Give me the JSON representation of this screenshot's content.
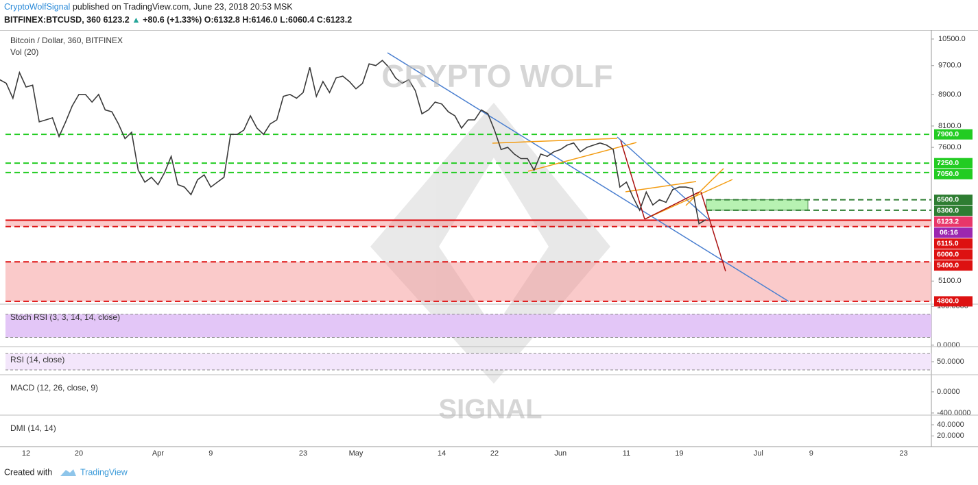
{
  "header": {
    "author": "CryptoWolfSignal",
    "published": "published on TradingView.com, June 23, 2018 20:53 MSK",
    "symbol": "BITFINEX:BTCUSD, 360",
    "last": "6123.2",
    "change": "+80.6 (+1.33%)",
    "open": "O:6132.8",
    "high": "H:6146.0",
    "low": "L:6060.4",
    "close": "C:6123.2"
  },
  "chart_data": {
    "type": "line",
    "title": "Bitcoin / Dollar, 360, BITFINEX",
    "subtitle": "Vol (20)",
    "color": "#3a3a3a",
    "log_scale": true,
    "categories": [
      null,
      null,
      null,
      null,
      "12",
      null,
      null,
      null,
      null,
      null,
      null,
      null,
      "20",
      null,
      null,
      null,
      null,
      null,
      null,
      null,
      null,
      null,
      null,
      null,
      "Apr",
      null,
      null,
      null,
      null,
      null,
      null,
      null,
      "9",
      null,
      null,
      null,
      null,
      null,
      null,
      null,
      null,
      null,
      null,
      null,
      null,
      null,
      "23",
      null,
      null,
      null,
      null,
      null,
      null,
      null,
      "May",
      null,
      null,
      null,
      null,
      null,
      null,
      null,
      null,
      null,
      null,
      null,
      null,
      "14",
      null,
      null,
      null,
      null,
      null,
      null,
      null,
      "22",
      null,
      null,
      null,
      null,
      null,
      null,
      null,
      null,
      null,
      "Jun",
      null,
      null,
      null,
      null,
      null,
      null,
      null,
      null,
      null,
      "11",
      null,
      null,
      null,
      null,
      null,
      null,
      null,
      "19",
      null,
      null,
      null,
      null,
      null,
      null,
      null,
      null,
      null,
      null,
      null,
      "Jul",
      null,
      null,
      null,
      null,
      null,
      null,
      null,
      "9",
      null,
      null,
      null,
      null,
      null,
      null,
      null,
      null,
      null,
      null,
      null,
      null,
      null,
      "23",
      null,
      null,
      null,
      null
    ],
    "values": [
      9300,
      9200,
      8800,
      9500,
      9100,
      9150,
      8200,
      8250,
      8300,
      7850,
      8200,
      8600,
      8900,
      8900,
      8700,
      8900,
      8500,
      8450,
      8150,
      7800,
      7950,
      7100,
      6850,
      6950,
      6800,
      7050,
      7400,
      6800,
      6750,
      6600,
      6900,
      7000,
      6750,
      6850,
      6950,
      7900,
      7900,
      8000,
      8350,
      8050,
      7900,
      8150,
      8250,
      8850,
      8900,
      8800,
      8950,
      9650,
      8850,
      9250,
      8950,
      9350,
      9400,
      9250,
      9050,
      9200,
      9750,
      9700,
      9850,
      9650,
      9350,
      9200,
      9300,
      9000,
      8400,
      8500,
      8700,
      8650,
      8450,
      8350,
      8050,
      8250,
      8250,
      8500,
      8400,
      8000,
      7550,
      7600,
      7450,
      7350,
      7350,
      7100,
      7450,
      7400,
      7500,
      7550,
      7650,
      7700,
      7500,
      7600,
      7650,
      7700,
      7650,
      7550,
      6750,
      6850,
      6550,
      6300,
      6650,
      6400,
      6500,
      6450,
      6700,
      6750,
      6750,
      6720,
      6050,
      6123.2,
      null,
      null,
      null,
      null,
      null,
      null,
      null,
      null,
      null,
      null,
      null,
      null,
      null,
      null,
      null,
      null,
      null,
      null,
      null,
      null,
      null,
      null,
      null,
      null,
      null,
      null,
      null,
      null,
      null,
      null,
      null,
      null,
      null,
      null
    ],
    "ylim": [
      4770,
      10760
    ],
    "yticks": [
      {
        "value": 10500,
        "label": "10500.0"
      },
      {
        "value": 9700,
        "label": "9700.0"
      },
      {
        "value": 8900,
        "label": "8900.0"
      },
      {
        "value": 8100,
        "label": "8100.0"
      },
      {
        "value": 7600,
        "label": "7600.0"
      },
      {
        "value": 5100,
        "label": "5100.0"
      }
    ],
    "levels": [
      {
        "value": 7900,
        "label": "7900.0",
        "color": "#22cc22"
      },
      {
        "value": 7250,
        "label": "7250.0",
        "color": "#22cc22"
      },
      {
        "value": 7050,
        "label": "7050.0",
        "color": "#22cc22"
      },
      {
        "value": 6500,
        "label": "6500.0",
        "color": "#2e7d32"
      },
      {
        "value": 6300,
        "label": "6300.0",
        "color": "#2e7d32"
      },
      {
        "value": 6123.2,
        "label": "6123.2",
        "color": "#e8366a"
      },
      {
        "value": 6115,
        "label": "6115.0",
        "color": "#dd1111"
      },
      {
        "value": 6000,
        "label": "6000.0",
        "color": "#dd1111"
      },
      {
        "value": 5400,
        "label": "5400.0",
        "color": "#dd1111"
      },
      {
        "value": 4800,
        "label": "4800.0",
        "color": "#dd1111"
      }
    ],
    "countdown": "06:16",
    "watermark": [
      "CRYPTO WOLF",
      "SIGNAL"
    ]
  },
  "indicators": [
    {
      "title": "Stoch RSI (3, 3, 14, 14, close)",
      "ylim": [
        -2,
        104
      ],
      "yticks": [
        {
          "value": 100,
          "label": "100.0000"
        },
        {
          "value": 0,
          "label": "0.0000"
        }
      ],
      "bands": [
        80,
        20
      ],
      "fill": "#e3c6f7"
    },
    {
      "title": "RSI (14, close)",
      "ylim": [
        20,
        85
      ],
      "yticks": [
        {
          "value": 50,
          "label": "50.0000"
        }
      ],
      "bands": [
        70,
        30
      ],
      "fill": "#f3e6fb"
    },
    {
      "title": "MACD (12, 26, close, 9)",
      "ylim": [
        -440,
        310
      ],
      "yticks": [
        {
          "value": 0,
          "label": "0.0000"
        },
        {
          "value": -400,
          "label": "-400.0000"
        }
      ]
    },
    {
      "title": "DMI (14, 14)",
      "ylim": [
        2,
        56
      ],
      "yticks": [
        {
          "value": 40,
          "label": "40.0000"
        },
        {
          "value": 20,
          "label": "20.0000"
        }
      ]
    }
  ],
  "footer": {
    "created": "Created with",
    "brand": "TradingView"
  }
}
